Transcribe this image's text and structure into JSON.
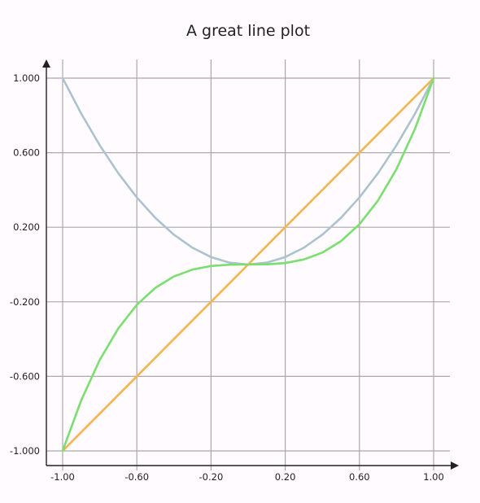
{
  "chart_data": {
    "type": "line",
    "title": "A great line plot",
    "xlabel": "",
    "ylabel": "",
    "xlim": [
      -1.0,
      1.0
    ],
    "ylim": [
      -1.0,
      1.0
    ],
    "x_ticks": [
      -1.0,
      -0.6,
      -0.2,
      0.2,
      0.6,
      1.0
    ],
    "x_tick_labels": [
      "-1.00",
      "-0.60",
      "-0.20",
      "0.20",
      "0.60",
      "1.00"
    ],
    "y_ticks": [
      1.0,
      0.6,
      0.2,
      -0.2,
      -0.6,
      -1.0
    ],
    "y_tick_labels": [
      "1.000",
      "0.600",
      "0.200",
      "-0.200",
      "-0.600",
      "-1.000"
    ],
    "grid": true,
    "legend": "none",
    "x": [
      -1.0,
      -0.9,
      -0.8,
      -0.7,
      -0.6,
      -0.5,
      -0.4,
      -0.3,
      -0.2,
      -0.1,
      0.0,
      0.1,
      0.2,
      0.3,
      0.4,
      0.5,
      0.6,
      0.7,
      0.8,
      0.9,
      1.0
    ],
    "series": [
      {
        "color": "#abc3cf",
        "values": [
          1.0,
          0.81,
          0.64,
          0.49,
          0.36,
          0.25,
          0.16,
          0.09,
          0.04,
          0.01,
          0.0,
          0.01,
          0.04,
          0.09,
          0.16,
          0.25,
          0.36,
          0.49,
          0.64,
          0.81,
          1.0
        ]
      },
      {
        "color": "#f5b451",
        "values": [
          -1.0,
          -0.9,
          -0.8,
          -0.7,
          -0.6,
          -0.5,
          -0.4,
          -0.3,
          -0.2,
          -0.1,
          0.0,
          0.1,
          0.2,
          0.3,
          0.4,
          0.5,
          0.6,
          0.7,
          0.8,
          0.9,
          1.0
        ]
      },
      {
        "color": "#7bde71",
        "values": [
          -1.0,
          -0.729,
          -0.512,
          -0.343,
          -0.216,
          -0.125,
          -0.064,
          -0.027,
          -0.008,
          -0.001,
          0.0,
          0.001,
          0.008,
          0.027,
          0.064,
          0.125,
          0.216,
          0.343,
          0.512,
          0.729,
          1.0
        ]
      }
    ]
  }
}
